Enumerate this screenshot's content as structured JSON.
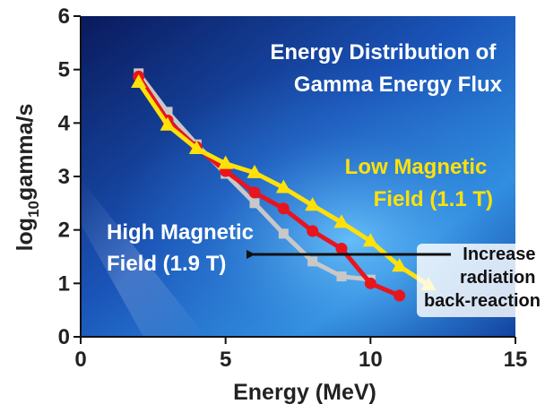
{
  "chart_data": {
    "type": "line",
    "title_lines": [
      "Energy Distribution of",
      "Gamma Energy Flux"
    ],
    "xlabel": "Energy (MeV)",
    "ylabel_main": "log",
    "ylabel_sub": "10",
    "ylabel_rest": "gamma/s",
    "xlim": [
      0,
      15
    ],
    "ylim": [
      0,
      6
    ],
    "xticks": [
      "0",
      "5",
      "10",
      "15"
    ],
    "yticks": [
      "0",
      "1",
      "2",
      "3",
      "4",
      "5",
      "6"
    ],
    "grid": false,
    "series": [
      {
        "color": "#c8c8c8",
        "marker": "square",
        "x": [
          2,
          3,
          4,
          5,
          6,
          7,
          8,
          9,
          10
        ],
        "y": [
          4.93,
          4.21,
          3.6,
          3.05,
          2.5,
          1.93,
          1.41,
          1.13,
          1.07
        ]
      },
      {
        "color": "#e8141e",
        "marker": "circle",
        "x": [
          2,
          3,
          4,
          5,
          6,
          7,
          8,
          9,
          10,
          11
        ],
        "y": [
          4.87,
          4.05,
          3.55,
          3.1,
          2.7,
          2.4,
          1.98,
          1.65,
          1.0,
          0.77
        ]
      },
      {
        "color": "#ffe10a",
        "marker": "triangle",
        "x": [
          2,
          3,
          4,
          5,
          6,
          7,
          8,
          9,
          10,
          11,
          12
        ],
        "y": [
          4.76,
          3.96,
          3.52,
          3.24,
          3.07,
          2.79,
          2.46,
          2.14,
          1.79,
          1.32,
          0.97
        ]
      }
    ],
    "annotations": {
      "low_field": [
        "Low Magnetic",
        "Field (1.1 T)"
      ],
      "high_field": [
        "High Magnetic",
        "Field (1.9 T)"
      ],
      "reaction": [
        "Increase",
        "radiation",
        "back-reaction"
      ]
    }
  }
}
